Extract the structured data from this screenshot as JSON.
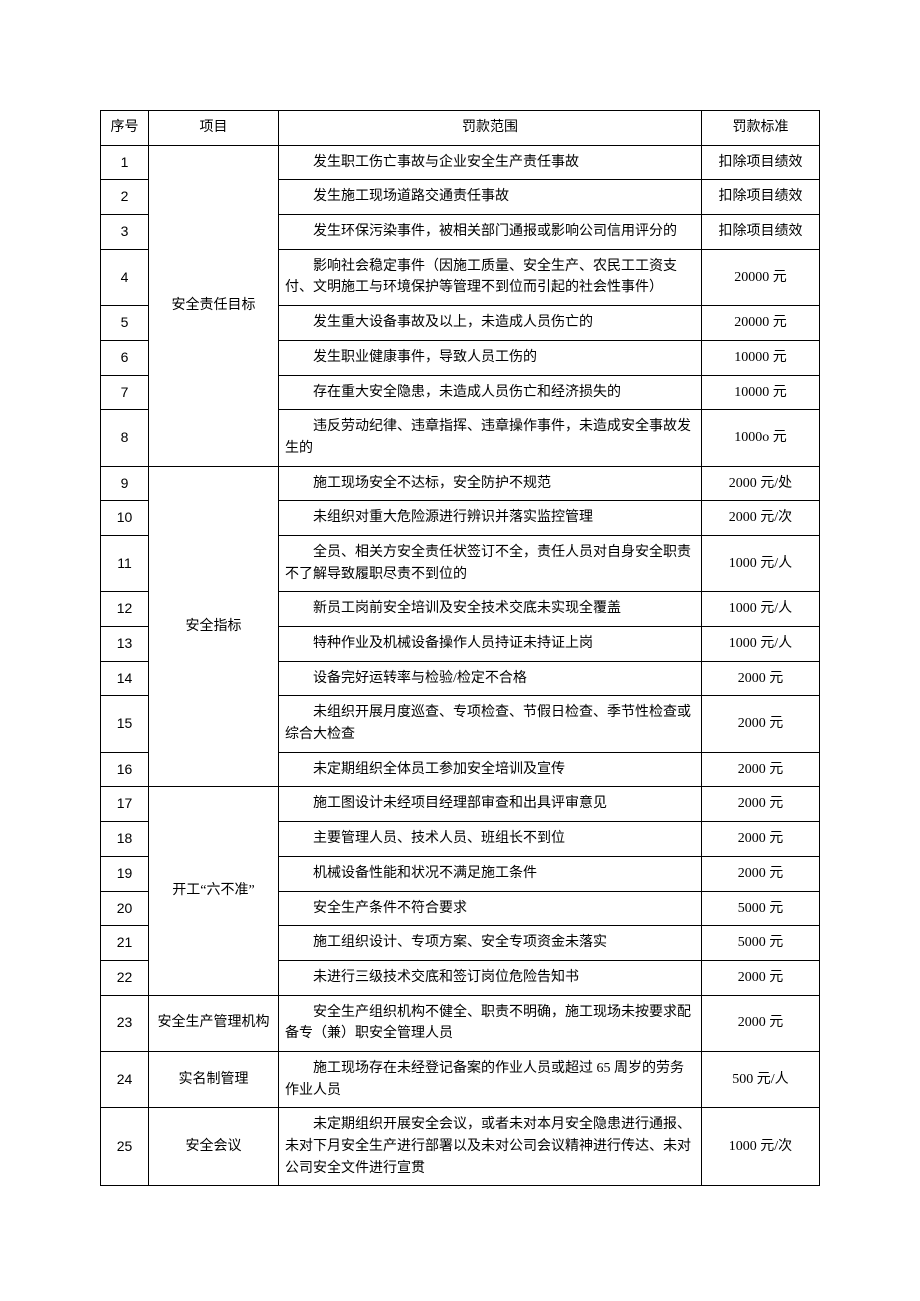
{
  "table": {
    "columns": {
      "seq": "序号",
      "item": "项目",
      "scope": "罚款范围",
      "std": "罚款标准"
    },
    "groups": [
      {
        "item": "安全责任目标",
        "rows": [
          {
            "seq": "1",
            "scope": "发生职工伤亡事故与企业安全生产责任事故",
            "std": "扣除项目绩效"
          },
          {
            "seq": "2",
            "scope": "发生施工现场道路交通责任事故",
            "std": "扣除项目绩效"
          },
          {
            "seq": "3",
            "scope": "发生环保污染事件，被相关部门通报或影响公司信用评分的",
            "std": "扣除项目绩效"
          },
          {
            "seq": "4",
            "scope": "影响社会稳定事件（因施工质量、安全生产、农民工工资支付、文明施工与环境保护等管理不到位而引起的社会性事件）",
            "std": "20000 元"
          },
          {
            "seq": "5",
            "scope": "发生重大设备事故及以上，未造成人员伤亡的",
            "std": "20000 元"
          },
          {
            "seq": "6",
            "scope": "发生职业健康事件，导致人员工伤的",
            "std": "10000 元"
          },
          {
            "seq": "7",
            "scope": "存在重大安全隐患，未造成人员伤亡和经济损失的",
            "std": "10000 元"
          },
          {
            "seq": "8",
            "scope": "违反劳动纪律、违章指挥、违章操作事件，未造成安全事故发生的",
            "std": "1000o 元"
          }
        ]
      },
      {
        "item": "安全指标",
        "rows": [
          {
            "seq": "9",
            "scope": "施工现场安全不达标，安全防护不规范",
            "std": "2000 元/处"
          },
          {
            "seq": "10",
            "scope": "未组织对重大危险源进行辨识并落实监控管理",
            "std": "2000 元/次"
          },
          {
            "seq": "11",
            "scope": "全员、相关方安全责任状签订不全，责任人员对自身安全职责不了解导致履职尽责不到位的",
            "std": "1000 元/人"
          },
          {
            "seq": "12",
            "scope": "新员工岗前安全培训及安全技术交底未实现全覆盖",
            "std": "1000 元/人"
          },
          {
            "seq": "13",
            "scope": "特种作业及机械设备操作人员持证未持证上岗",
            "std": "1000 元/人"
          },
          {
            "seq": "14",
            "scope": "设备完好运转率与检验/检定不合格",
            "std": "2000 元"
          },
          {
            "seq": "15",
            "scope": "未组织开展月度巡查、专项检查、节假日检查、季节性检查或综合大检查",
            "std": "2000 元"
          },
          {
            "seq": "16",
            "scope": "未定期组织全体员工参加安全培训及宣传",
            "std": "2000 元"
          }
        ]
      },
      {
        "item": "开工“六不准”",
        "rows": [
          {
            "seq": "17",
            "scope": "施工图设计未经项目经理部审查和出具评审意见",
            "std": "2000 元"
          },
          {
            "seq": "18",
            "scope": "主要管理人员、技术人员、班组长不到位",
            "std": "2000 元"
          },
          {
            "seq": "19",
            "scope": "机械设备性能和状况不满足施工条件",
            "std": "2000 元"
          },
          {
            "seq": "20",
            "scope": "安全生产条件不符合要求",
            "std": "5000 元"
          },
          {
            "seq": "21",
            "scope": "施工组织设计、专项方案、安全专项资金未落实",
            "std": "5000 元"
          },
          {
            "seq": "22",
            "scope": "未进行三级技术交底和签订岗位危险告知书",
            "std": "2000 元"
          }
        ]
      },
      {
        "item": "安全生产管理机构",
        "rows": [
          {
            "seq": "23",
            "scope": "安全生产组织机构不健全、职责不明确，施工现场未按要求配备专（兼）职安全管理人员",
            "std": "2000 元"
          }
        ]
      },
      {
        "item": "实名制管理",
        "rows": [
          {
            "seq": "24",
            "scope": "施工现场存在未经登记备案的作业人员或超过 65 周岁的劳务作业人员",
            "std": "500 元/人"
          }
        ]
      },
      {
        "item": "安全会议",
        "rows": [
          {
            "seq": "25",
            "scope": "未定期组织开展安全会议，或者未对本月安全隐患进行通报、未对下月安全生产进行部署以及未对公司会议精神进行传达、未对公司安全文件进行宣贯",
            "std": "1000 元/次"
          }
        ]
      }
    ]
  }
}
